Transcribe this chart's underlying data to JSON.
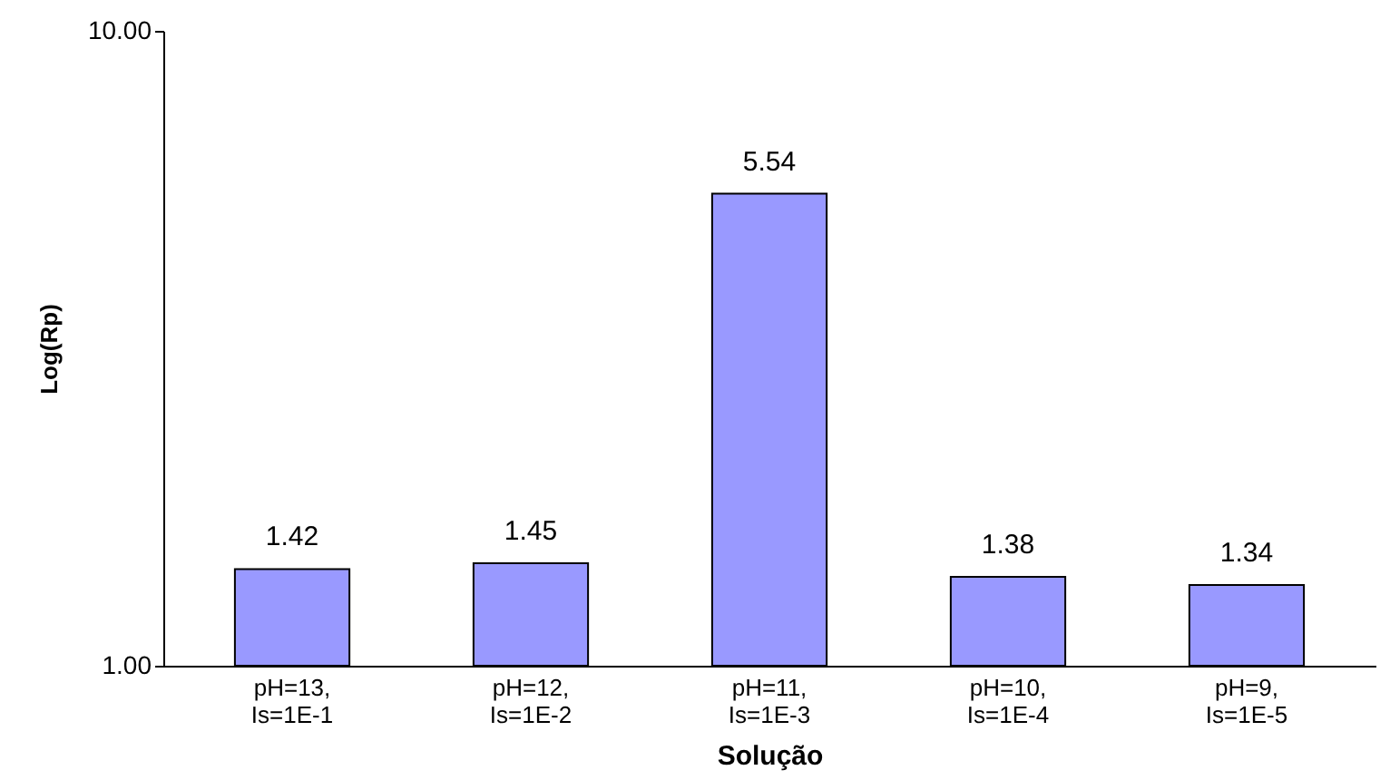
{
  "chart_data": {
    "type": "bar",
    "xlabel": "Solução",
    "ylabel": "Log(Rp)",
    "categories": [
      "pH=13, Is=1E-1",
      "pH=12, Is=1E-2",
      "pH=11, Is=1E-3",
      "pH=10, Is=1E-4",
      "pH=9, Is=1E-5"
    ],
    "values": [
      1.42,
      1.45,
      5.54,
      1.38,
      1.34
    ],
    "color": "#9999ff",
    "ylim": [
      1,
      10
    ],
    "yticks": [
      {
        "value": 1,
        "label": "1.00"
      },
      {
        "value": 10,
        "label": "10.00"
      }
    ],
    "log": true,
    "grid": false,
    "data_labels": true
  }
}
